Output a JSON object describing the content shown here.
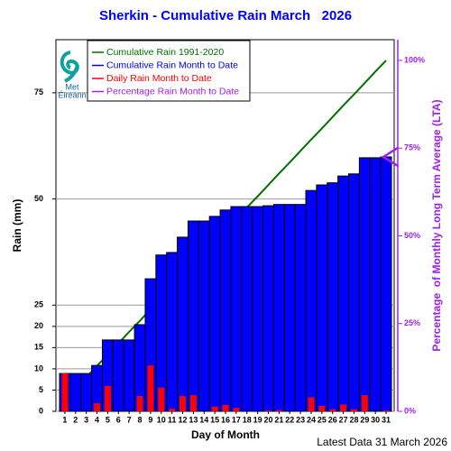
{
  "chart_data": {
    "type": "bar",
    "title": "Sherkin - Cumulative Rain March   2026",
    "y_label": "Rain (mm)",
    "x_label": "Day of Month",
    "y2_label": "Percentage  of Monthly Long Term Average (LTA)",
    "footer": "Latest Data 31 March 2026",
    "logo": [
      "Met",
      "Éireann"
    ],
    "categories": [
      "1",
      "2",
      "3",
      "4",
      "5",
      "6",
      "7",
      "8",
      "9",
      "10",
      "11",
      "12",
      "13",
      "14",
      "15",
      "16",
      "17",
      "18",
      "19",
      "20",
      "21",
      "22",
      "23",
      "24",
      "25",
      "26",
      "27",
      "28",
      "29",
      "30",
      "31"
    ],
    "series": [
      {
        "name": "Cumulative Rain 1991-2020",
        "color": "#007000",
        "kind": "line",
        "values": [
          2.7,
          5.3,
          8.0,
          10.7,
          13.3,
          16.0,
          18.7,
          21.3,
          24.0,
          26.6,
          29.3,
          32.0,
          34.6,
          37.3,
          40.0,
          42.6,
          45.3,
          48.0,
          50.6,
          53.3,
          56.0,
          58.6,
          61.3,
          64.0,
          66.6,
          69.3,
          72.0,
          74.6,
          77.3,
          80.0,
          82.6
        ]
      },
      {
        "name": "Cumulative Rain Month to Date",
        "color": "#0000ff",
        "kind": "bar",
        "values": [
          8.9,
          8.9,
          8.9,
          10.8,
          16.8,
          16.8,
          16.8,
          20.4,
          31.2,
          36.8,
          37.4,
          41.0,
          44.8,
          44.8,
          45.9,
          47.4,
          48.2,
          48.2,
          48.2,
          48.4,
          48.7,
          48.7,
          48.7,
          52.0,
          53.3,
          53.8,
          55.4,
          55.9,
          59.7,
          59.7,
          59.9
        ]
      },
      {
        "name": "Daily Rain Month to Date",
        "color": "#ff0000",
        "kind": "daily",
        "values": [
          8.9,
          0,
          0,
          1.9,
          6.0,
          0,
          0,
          3.6,
          10.8,
          5.6,
          0.6,
          3.6,
          3.8,
          0,
          1.1,
          1.5,
          0.8,
          0,
          0,
          0.2,
          0.3,
          0,
          0,
          3.3,
          1.3,
          0.5,
          1.6,
          0.5,
          3.8,
          0,
          0.2
        ]
      }
    ],
    "marker": {
      "name": "Percentage Rain Month to Date",
      "color": "#a020f0",
      "value": 72.5,
      "axis": "y2"
    },
    "ylim": [
      0,
      87.5
    ],
    "yticks": [
      0,
      5,
      10,
      15,
      20,
      25,
      50,
      75
    ],
    "y2lim": [
      0,
      105.9
    ],
    "y2ticks": [
      {
        "value": 0,
        "label": "0%"
      },
      {
        "value": 25,
        "label": "25%"
      },
      {
        "value": 50,
        "label": "50%"
      },
      {
        "value": 75,
        "label": "75%"
      },
      {
        "value": 100,
        "label": "100%"
      }
    ],
    "grid": true
  }
}
